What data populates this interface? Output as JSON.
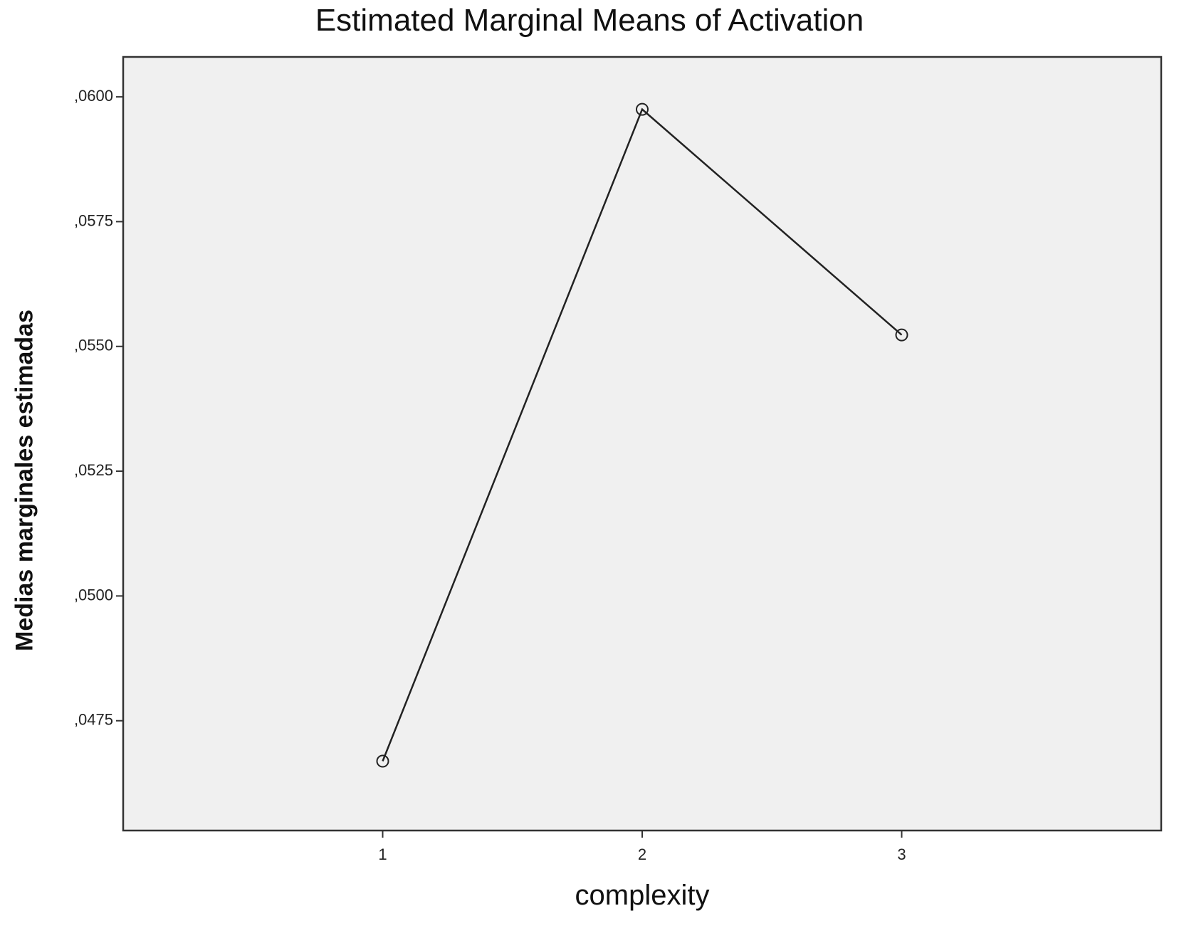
{
  "chart_data": {
    "type": "line",
    "title": "Estimated Marginal Means of Activation",
    "xlabel": "complexity",
    "ylabel": "Medias marginales estimadas",
    "categories": [
      "1",
      "2",
      "3"
    ],
    "series": [
      {
        "values": [
          0.04669,
          0.05975,
          0.05523
        ]
      }
    ],
    "ylim": [
      0.0453,
      0.0608
    ],
    "yticks": [
      0.0475,
      0.05,
      0.0525,
      0.055,
      0.0575,
      0.06
    ],
    "ytick_labels": [
      ",0475",
      ",0500",
      ",0525",
      ",0550",
      ",0575",
      ",0600"
    ],
    "marker": "open-circle",
    "grid": false,
    "legend": "none",
    "colors": {
      "plot_background": "#f0f0f0",
      "line": "#222222",
      "axis": "#333333"
    }
  }
}
